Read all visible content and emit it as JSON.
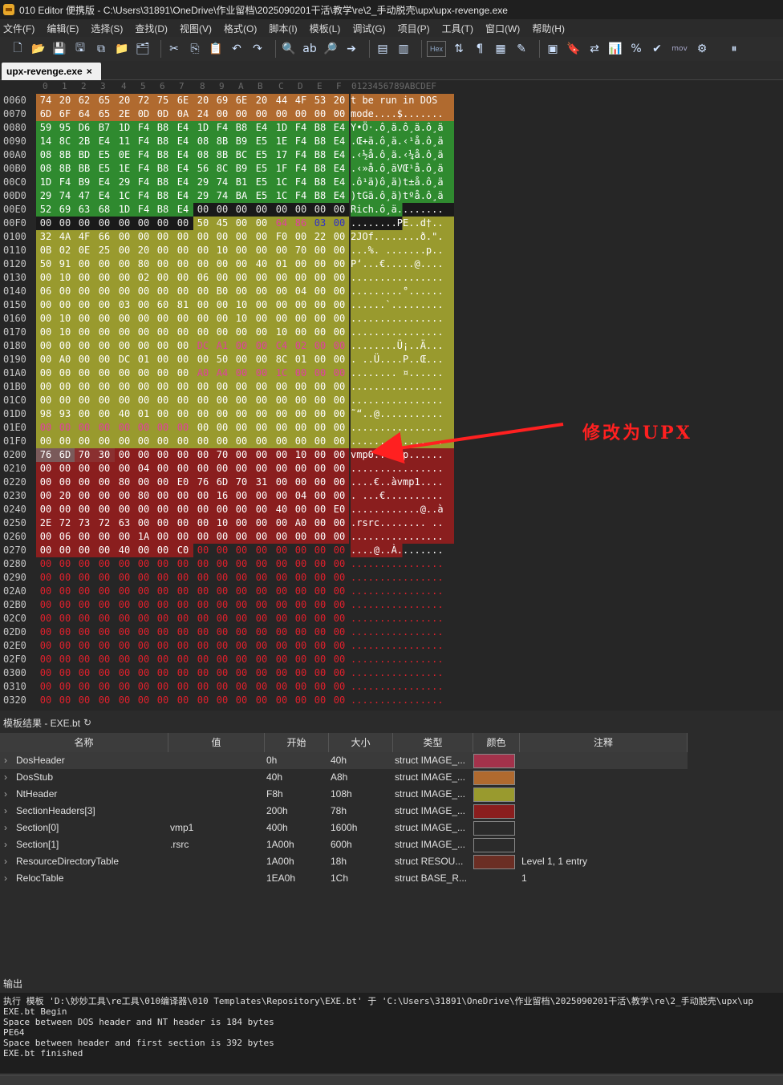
{
  "window": {
    "title": "010 Editor 便携版 - C:\\Users\\31891\\OneDrive\\作业留档\\2025090201干活\\教学\\re\\2_手动脱壳\\upx\\upx-revenge.exe"
  },
  "menu": [
    "文件(F)",
    "编辑(E)",
    "选择(S)",
    "查找(D)",
    "视图(V)",
    "格式(O)",
    "脚本(I)",
    "模板(L)",
    "调试(G)",
    "项目(P)",
    "工具(T)",
    "窗口(W)",
    "帮助(H)"
  ],
  "toolbar": {
    "hex_label": "Hex",
    "mov_label": "mov"
  },
  "tab": {
    "label": "upx-revenge.exe"
  },
  "hex": {
    "col_headers": [
      "0",
      "1",
      "2",
      "3",
      "4",
      "5",
      "6",
      "7",
      "8",
      "9",
      "A",
      "B",
      "C",
      "D",
      "E",
      "F"
    ],
    "ascii_header": "0123456789ABCDEF",
    "rows": [
      {
        "addr": "0060",
        "bytes": "74 20 62 65 20 72 75 6E 20 69 6E 20 44 4F 53 20",
        "ascii": "t be run in DOS "
      },
      {
        "addr": "0070",
        "bytes": "6D 6F 64 65 2E 0D 0D 0A 24 00 00 00 00 00 00 00",
        "ascii": "mode....$......."
      },
      {
        "addr": "0080",
        "bytes": "59 95 D6 B7 1D F4 B8 E4 1D F4 B8 E4 1D F4 B8 E4",
        "ascii": "Y•Ö·.ô¸ä.ô¸ä.ô¸ä"
      },
      {
        "addr": "0090",
        "bytes": "14 8C 2B E4 11 F4 B8 E4 08 8B B9 E5 1E F4 B8 E4",
        "ascii": ".Œ+ä.ô¸ä.‹¹å.ô¸ä"
      },
      {
        "addr": "00A0",
        "bytes": "08 8B BD E5 0E F4 B8 E4 08 8B BC E5 17 F4 B8 E4",
        "ascii": ".‹½å.ô¸ä.‹¼å.ô¸ä"
      },
      {
        "addr": "00B0",
        "bytes": "08 8B BB E5 1E F4 B8 E4 56 8C B9 E5 1F F4 B8 E4",
        "ascii": ".‹»å.ô¸äVŒ¹å.ô¸ä"
      },
      {
        "addr": "00C0",
        "bytes": "1D F4 B9 E4 29 F4 B8 E4 29 74 B1 E5 1C F4 B8 E4",
        "ascii": ".ô¹ä)ô¸ä)t±å.ô¸ä"
      },
      {
        "addr": "00D0",
        "bytes": "29 74 47 E4 1C F4 B8 E4 29 74 BA E5 1C F4 B8 E4",
        "ascii": ")tGä.ô¸ä)tºå.ô¸ä"
      },
      {
        "addr": "00E0",
        "bytes": "52 69 63 68 1D F4 B8 E4 00 00 00 00 00 00 00 00",
        "ascii": "Rich.ô¸ä........"
      },
      {
        "addr": "00F0",
        "bytes": "00 00 00 00 00 00 00 00 50 45 00 00 64 86 03 00",
        "ascii": "........PE..d†.."
      },
      {
        "addr": "0100",
        "bytes": "32 4A 4F 66 00 00 00 00 00 00 00 00 F0 00 22 00",
        "ascii": "2JOf........ð.\"."
      },
      {
        "addr": "0110",
        "bytes": "0B 02 0E 25 00 20 00 00 00 10 00 00 00 70 00 00",
        "ascii": "...%. .......p.."
      },
      {
        "addr": "0120",
        "bytes": "50 91 00 00 00 80 00 00 00 00 00 40 01 00 00 00",
        "ascii": "P‘...€.....@...."
      },
      {
        "addr": "0130",
        "bytes": "00 10 00 00 00 02 00 00 06 00 00 00 00 00 00 00",
        "ascii": "................"
      },
      {
        "addr": "0140",
        "bytes": "06 00 00 00 00 00 00 00 00 B0 00 00 00 04 00 00",
        "ascii": ".........°......"
      },
      {
        "addr": "0150",
        "bytes": "00 00 00 00 03 00 60 81 00 00 10 00 00 00 00 00",
        "ascii": "......`........."
      },
      {
        "addr": "0160",
        "bytes": "00 10 00 00 00 00 00 00 00 00 10 00 00 00 00 00",
        "ascii": "................"
      },
      {
        "addr": "0170",
        "bytes": "00 10 00 00 00 00 00 00 00 00 00 00 10 00 00 00",
        "ascii": "................"
      },
      {
        "addr": "0180",
        "bytes": "00 00 00 00 00 00 00 00 DC A1 00 00 C4 02 00 00",
        "ascii": "........Ü¡..Ä..."
      },
      {
        "addr": "0190",
        "bytes": "00 A0 00 00 DC 01 00 00 00 50 00 00 8C 01 00 00",
        "ascii": ". ..Ü....P..Œ..."
      },
      {
        "addr": "01A0",
        "bytes": "00 00 00 00 00 00 00 00 A0 A4 00 00 1C 00 00 00",
        "ascii": "........ ¤......"
      },
      {
        "addr": "01B0",
        "bytes": "00 00 00 00 00 00 00 00 00 00 00 00 00 00 00 00",
        "ascii": "................"
      },
      {
        "addr": "01C0",
        "bytes": "00 00 00 00 00 00 00 00 00 00 00 00 00 00 00 00",
        "ascii": "................"
      },
      {
        "addr": "01D0",
        "bytes": "98 93 00 00 40 01 00 00 00 00 00 00 00 00 00 00",
        "ascii": "˜“..@..........."
      },
      {
        "addr": "01E0",
        "bytes": "00 00 00 00 00 00 00 00 00 00 00 00 00 00 00 00",
        "ascii": "................"
      },
      {
        "addr": "01F0",
        "bytes": "00 00 00 00 00 00 00 00 00 00 00 00 00 00 00 00",
        "ascii": "................"
      },
      {
        "addr": "0200",
        "bytes": "76 6D 70 30 00 00 00 00 00 70 00 00 00 10 00 00",
        "ascii": "vmp0.....p......"
      },
      {
        "addr": "0210",
        "bytes": "00 00 00 00 00 04 00 00 00 00 00 00 00 00 00 00",
        "ascii": "................"
      },
      {
        "addr": "0220",
        "bytes": "00 00 00 00 80 00 00 E0 76 6D 70 31 00 00 00 00",
        "ascii": "....€..àvmp1...."
      },
      {
        "addr": "0230",
        "bytes": "00 20 00 00 00 80 00 00 00 16 00 00 00 04 00 00",
        "ascii": ". ...€.........."
      },
      {
        "addr": "0240",
        "bytes": "00 00 00 00 00 00 00 00 00 00 00 00 40 00 00 E0",
        "ascii": "............@..à"
      },
      {
        "addr": "0250",
        "bytes": "2E 72 73 72 63 00 00 00 00 10 00 00 00 A0 00 00",
        "ascii": ".rsrc........ .."
      },
      {
        "addr": "0260",
        "bytes": "00 06 00 00 00 1A 00 00 00 00 00 00 00 00 00 00",
        "ascii": "................"
      },
      {
        "addr": "0270",
        "bytes": "00 00 00 00 40 00 00 C0 00 00 00 00 00 00 00 00",
        "ascii": "....@..À........"
      },
      {
        "addr": "0280",
        "bytes": "00 00 00 00 00 00 00 00 00 00 00 00 00 00 00 00",
        "ascii": "................"
      },
      {
        "addr": "0290",
        "bytes": "00 00 00 00 00 00 00 00 00 00 00 00 00 00 00 00",
        "ascii": "................"
      },
      {
        "addr": "02A0",
        "bytes": "00 00 00 00 00 00 00 00 00 00 00 00 00 00 00 00",
        "ascii": "................"
      },
      {
        "addr": "02B0",
        "bytes": "00 00 00 00 00 00 00 00 00 00 00 00 00 00 00 00",
        "ascii": "................"
      },
      {
        "addr": "02C0",
        "bytes": "00 00 00 00 00 00 00 00 00 00 00 00 00 00 00 00",
        "ascii": "................"
      },
      {
        "addr": "02D0",
        "bytes": "00 00 00 00 00 00 00 00 00 00 00 00 00 00 00 00",
        "ascii": "................"
      },
      {
        "addr": "02E0",
        "bytes": "00 00 00 00 00 00 00 00 00 00 00 00 00 00 00 00",
        "ascii": "................"
      },
      {
        "addr": "02F0",
        "bytes": "00 00 00 00 00 00 00 00 00 00 00 00 00 00 00 00",
        "ascii": "................"
      },
      {
        "addr": "0300",
        "bytes": "00 00 00 00 00 00 00 00 00 00 00 00 00 00 00 00",
        "ascii": "................"
      },
      {
        "addr": "0310",
        "bytes": "00 00 00 00 00 00 00 00 00 00 00 00 00 00 00 00",
        "ascii": "................"
      },
      {
        "addr": "0320",
        "bytes": "00 00 00 00 00 00 00 00 00 00 00 00 00 00 00 00",
        "ascii": "................"
      }
    ]
  },
  "annotation": {
    "text": "修改为UPX"
  },
  "template_panel": {
    "title": "模板结果 - EXE.bt",
    "headers": [
      "名称",
      "值",
      "开始",
      "大小",
      "类型",
      "颜色",
      "注释"
    ],
    "rows": [
      {
        "name": "DosHeader",
        "value": "",
        "start": "0h",
        "size": "40h",
        "type": "struct IMAGE_...",
        "color": "#a3324b",
        "note": ""
      },
      {
        "name": "DosStub",
        "value": "",
        "start": "40h",
        "size": "A8h",
        "type": "struct IMAGE_...",
        "color": "#b06a2f",
        "note": ""
      },
      {
        "name": "NtHeader",
        "value": "",
        "start": "F8h",
        "size": "108h",
        "type": "struct IMAGE_...",
        "color": "#999a2e",
        "note": ""
      },
      {
        "name": "SectionHeaders[3]",
        "value": "",
        "start": "200h",
        "size": "78h",
        "type": "struct IMAGE_...",
        "color": "#8a1e1e",
        "note": ""
      },
      {
        "name": "Section[0]",
        "value": "vmp1",
        "start": "400h",
        "size": "1600h",
        "type": "struct IMAGE_...",
        "color": "#2b2b2b",
        "note": ""
      },
      {
        "name": "Section[1]",
        "value": ".rsrc",
        "start": "1A00h",
        "size": "600h",
        "type": "struct IMAGE_...",
        "color": "#2b2b2b",
        "note": ""
      },
      {
        "name": "ResourceDirectoryTable",
        "value": "",
        "start": "1A00h",
        "size": "18h",
        "type": "struct RESOU...",
        "color": "#6b2e24",
        "note": "Level 1, 1 entry"
      },
      {
        "name": "RelocTable",
        "value": "",
        "start": "1EA0h",
        "size": "1Ch",
        "type": "struct BASE_R...",
        "color": "",
        "note": "1"
      }
    ]
  },
  "output": {
    "title": "输出",
    "lines": [
      "执行 模板 'D:\\妙妙工具\\re工具\\010编译器\\010 Templates\\Repository\\EXE.bt' 于 'C:\\Users\\31891\\OneDrive\\作业留档\\2025090201干活\\教学\\re\\2_手动脱壳\\upx\\up",
      "EXE.bt Begin",
      "Space between DOS header and NT header is 184 bytes",
      "PE64",
      "Space between header and first section is 392 bytes",
      "EXE.bt finished"
    ]
  },
  "colors": {
    "dosstub": "#b06a2f",
    "rich": "#2f8a2f",
    "ntheader": "#999a2e",
    "sections": "#8a1e1e",
    "zero_red": "#e0202c",
    "magenta": "#e040a0",
    "blue": "#3030c8"
  }
}
